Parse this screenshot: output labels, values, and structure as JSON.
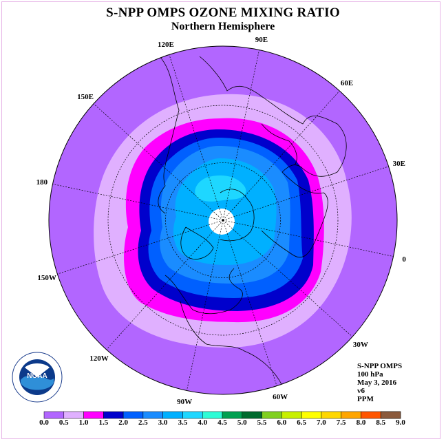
{
  "title": "S-NPP OMPS OZONE MIXING RATIO",
  "subtitle": "Northern Hemisphere",
  "longitude_labels": [
    "90E",
    "60E",
    "30E",
    "0",
    "30W",
    "60W",
    "90W",
    "120W",
    "150W",
    "180",
    "150E",
    "120E"
  ],
  "info": {
    "instrument": "S-NPP OMPS",
    "level": "100 hPa",
    "date": "May 3, 2016",
    "version": "v6",
    "units": "PPM"
  },
  "logo": {
    "text": "NOAA",
    "ring_text": "NATIONAL OCEANIC AND ATMOSPHERIC ADMINISTRATION · U.S. DEPARTMENT OF COMMERCE"
  },
  "colorbar": {
    "ticks": [
      "0.0",
      "0.5",
      "1.0",
      "1.5",
      "2.0",
      "2.5",
      "3.0",
      "3.5",
      "4.0",
      "4.5",
      "5.0",
      "5.5",
      "6.0",
      "6.5",
      "7.0",
      "7.5",
      "8.0",
      "8.5",
      "9.0"
    ],
    "colors": [
      "#b266ff",
      "#e0b0ff",
      "#ff00ff",
      "#0000cc",
      "#0060ff",
      "#1a8cff",
      "#00b0ff",
      "#1ed7ff",
      "#2efcd6",
      "#00a050",
      "#006b2e",
      "#80d020",
      "#c8f000",
      "#ffff00",
      "#ffd700",
      "#ffa500",
      "#ff5500",
      "#ee0000",
      "#8b5a3c"
    ]
  },
  "map_colors": {
    "background_disc": "#b266ff",
    "ring_light": "#e0b0ff",
    "ring_magenta": "#ff00ff",
    "ring_darkblue": "#0000cc",
    "ring_blue": "#0060ff",
    "ring_mid": "#1a8cff",
    "ring_light_blue": "#00b0ff",
    "core_cyan": "#1ed7ff",
    "pole_hole": "#ffffff"
  }
}
